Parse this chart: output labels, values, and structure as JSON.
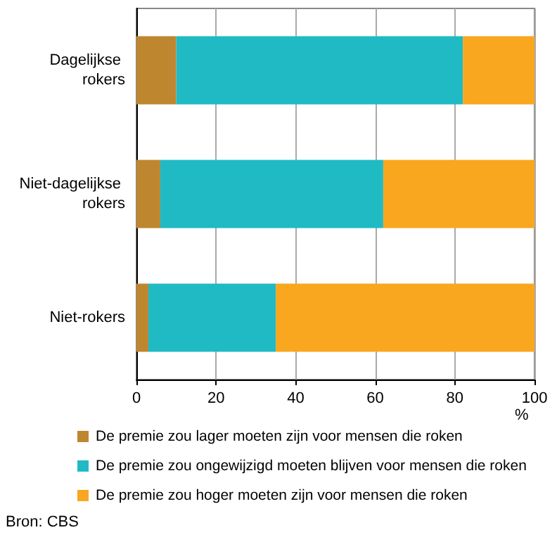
{
  "chart_data": {
    "type": "bar",
    "orientation": "horizontal",
    "stacked": true,
    "categories": [
      "Dagelijkse rokers",
      "Niet-dagelijkse rokers",
      "Niet-rokers"
    ],
    "series": [
      {
        "name": "De premie zou lager moeten zijn voor mensen die roken",
        "color": "#bf8630",
        "values": [
          10,
          6,
          3
        ]
      },
      {
        "name": "De premie zou ongewijzigd moeten blijven voor mensen die roken",
        "color": "#20bac5",
        "values": [
          72,
          56,
          32
        ]
      },
      {
        "name": "De premie zou hoger moeten zijn voor mensen die roken",
        "color": "#f8a71e",
        "values": [
          18,
          38,
          65
        ]
      }
    ],
    "xlim": [
      0,
      100
    ],
    "xticks": [
      0,
      20,
      40,
      60,
      80,
      100
    ],
    "xlabel": "%",
    "grid": "x",
    "legend": "bottom",
    "annotations": [
      "Bron: CBS"
    ]
  }
}
